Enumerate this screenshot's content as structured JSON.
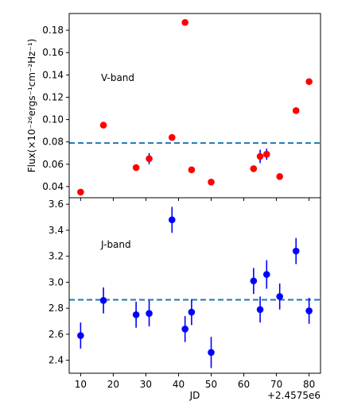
{
  "chart_data": [
    {
      "type": "scatter",
      "annotation": "V-band",
      "ylabel": "Flux(×10⁻²⁶ergs⁻¹cm⁻²Hz⁻¹)",
      "ylim": [
        0.03,
        0.195
      ],
      "yticks": [
        0.04,
        0.06,
        0.08,
        0.1,
        0.12,
        0.14,
        0.16,
        0.18
      ],
      "ytick_labels": [
        "0.04",
        "0.06",
        "0.08",
        "0.10",
        "0.12",
        "0.14",
        "0.16",
        "0.18"
      ],
      "mean_line": 0.079,
      "marker_color": "#ff0000",
      "errorbar_color": "#0000ff",
      "line_color": "#1f77b4",
      "x": [
        10,
        17,
        27,
        31,
        38,
        42,
        44,
        50,
        63,
        65,
        67,
        71,
        76,
        80
      ],
      "y": [
        0.035,
        0.095,
        0.057,
        0.065,
        0.084,
        0.187,
        0.055,
        0.044,
        0.056,
        0.067,
        0.069,
        0.049,
        0.108,
        0.134
      ],
      "yerr": [
        0,
        0,
        0,
        0.005,
        0,
        0,
        0,
        0,
        0,
        0.006,
        0.005,
        0,
        0,
        0
      ]
    },
    {
      "type": "scatter",
      "annotation": "J-band",
      "ylim": [
        2.3,
        3.65
      ],
      "yticks": [
        2.4,
        2.6,
        2.8,
        3.0,
        3.2,
        3.4,
        3.6
      ],
      "ytick_labels": [
        "2.4",
        "2.6",
        "2.8",
        "3.0",
        "3.2",
        "3.4",
        "3.6"
      ],
      "mean_line": 2.865,
      "marker_color": "#0000ff",
      "errorbar_color": "#0000ff",
      "line_color": "#1f77b4",
      "x": [
        10,
        17,
        27,
        31,
        38,
        42,
        44,
        50,
        63,
        65,
        67,
        71,
        76,
        80
      ],
      "y": [
        2.59,
        2.86,
        2.75,
        2.76,
        3.48,
        2.64,
        2.77,
        2.46,
        3.01,
        2.79,
        3.06,
        2.89,
        3.24,
        2.78
      ],
      "yerr": [
        0.1,
        0.1,
        0.1,
        0.1,
        0.1,
        0.1,
        0.1,
        0.12,
        0.1,
        0.1,
        0.11,
        0.1,
        0.1,
        0.1
      ]
    }
  ],
  "xaxis": {
    "label": "JD",
    "offset_label": "+2.4575e6",
    "xlim": [
      6.5,
      83.5
    ],
    "ticks": [
      10,
      20,
      30,
      40,
      50,
      60,
      70,
      80
    ],
    "tick_labels": [
      "10",
      "20",
      "30",
      "40",
      "50",
      "60",
      "70",
      "80"
    ]
  }
}
